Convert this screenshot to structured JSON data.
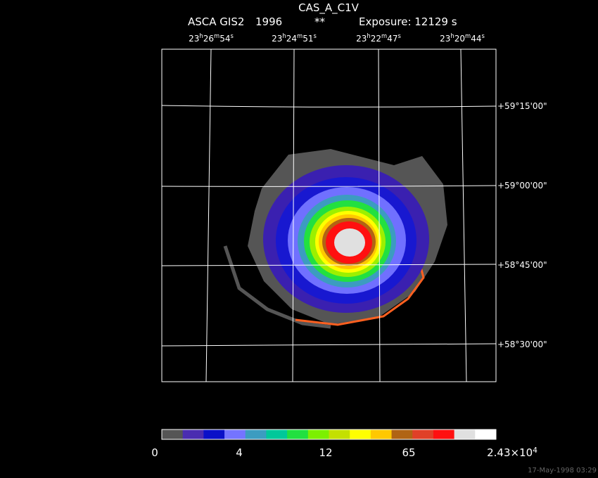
{
  "header": {
    "title": "CAS_A_C1V",
    "instrument": "ASCA GIS2",
    "year": "1996",
    "flag": "**",
    "exposure": "Exposure: 12129 s"
  },
  "ra_labels": [
    [
      "23",
      "h",
      "26",
      "m",
      "54",
      "s"
    ],
    [
      "23",
      "h",
      "24",
      "m",
      "51",
      "s"
    ],
    [
      "23",
      "h",
      "22",
      "m",
      "47",
      "s"
    ],
    [
      "23",
      "h",
      "20",
      "m",
      "44",
      "s"
    ]
  ],
  "dec_labels": [
    "+59°15'00\"",
    "+59°00'00\"",
    "+58°45'00\"",
    "+58°30'00\""
  ],
  "colorbar": {
    "colors": [
      "#555555",
      "#4a2cb0",
      "#0a10c8",
      "#7474ff",
      "#3c9cc0",
      "#00c89a",
      "#22e040",
      "#7cf000",
      "#c4e000",
      "#ffff00",
      "#ffc800",
      "#b06414",
      "#e04028",
      "#ff1010",
      "#e0e0e0",
      "#ffffff"
    ],
    "labels": [
      [
        "0"
      ],
      [
        "4"
      ],
      [
        "12"
      ],
      [
        "65"
      ],
      [
        "2.43×10",
        "4"
      ]
    ]
  },
  "timestamp": "17-May-1998 03:29"
}
